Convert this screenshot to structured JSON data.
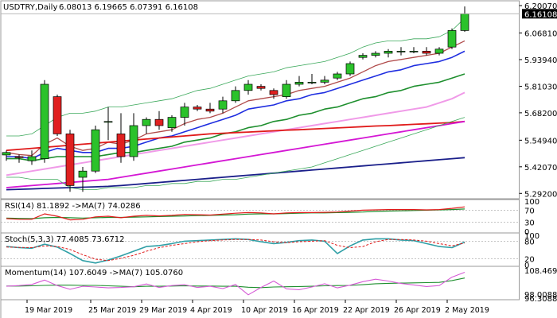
{
  "chart_data": {
    "type": "line",
    "symbol_title": "USDTRY,Daily",
    "ohlc_label": "6.08013 6.19665 6.07391 6.16108",
    "x_tick_labels": [
      "19 Mar 2019",
      "25 Mar 2019",
      "29 Mar 2019",
      "4 Apr 2019",
      "10 Apr 2019",
      "16 Apr 2019",
      "22 Apr 2019",
      "26 Apr 2019",
      "2 May 2019"
    ],
    "x_tick_positions": [
      2,
      7,
      11,
      15,
      19,
      23,
      27,
      31,
      35
    ],
    "main": {
      "y_ticks": [
        "6.20070",
        "6.06810",
        "5.93940",
        "5.81030",
        "5.68200",
        "5.54940",
        "5.42070",
        "5.29200"
      ],
      "y_tick_values": [
        6.2007,
        6.0681,
        5.9394,
        5.8103,
        5.682,
        5.5494,
        5.4207,
        5.292
      ],
      "ylim": [
        5.27,
        6.22
      ],
      "current_price_label": "6.16108",
      "current_price": 6.16108,
      "candles": [
        {
          "o": 5.478,
          "h": 5.5,
          "l": 5.45,
          "c": 5.49
        },
        {
          "o": 5.47,
          "h": 5.48,
          "l": 5.44,
          "c": 5.465
        },
        {
          "o": 5.45,
          "h": 5.5,
          "l": 5.43,
          "c": 5.47
        },
        {
          "o": 5.46,
          "h": 5.84,
          "l": 5.44,
          "c": 5.82
        },
        {
          "o": 5.76,
          "h": 5.77,
          "l": 5.57,
          "c": 5.58
        },
        {
          "o": 5.58,
          "h": 5.6,
          "l": 5.3,
          "c": 5.33
        },
        {
          "o": 5.37,
          "h": 5.42,
          "l": 5.3,
          "c": 5.4
        },
        {
          "o": 5.4,
          "h": 5.62,
          "l": 5.39,
          "c": 5.6
        },
        {
          "o": 5.64,
          "h": 5.71,
          "l": 5.55,
          "c": 5.64
        },
        {
          "o": 5.58,
          "h": 5.68,
          "l": 5.44,
          "c": 5.47
        },
        {
          "o": 5.47,
          "h": 5.68,
          "l": 5.45,
          "c": 5.62
        },
        {
          "o": 5.62,
          "h": 5.66,
          "l": 5.58,
          "c": 5.65
        },
        {
          "o": 5.65,
          "h": 5.69,
          "l": 5.6,
          "c": 5.62
        },
        {
          "o": 5.61,
          "h": 5.67,
          "l": 5.59,
          "c": 5.66
        },
        {
          "o": 5.66,
          "h": 5.73,
          "l": 5.62,
          "c": 5.71
        },
        {
          "o": 5.71,
          "h": 5.72,
          "l": 5.69,
          "c": 5.7
        },
        {
          "o": 5.7,
          "h": 5.73,
          "l": 5.68,
          "c": 5.69
        },
        {
          "o": 5.7,
          "h": 5.76,
          "l": 5.68,
          "c": 5.74
        },
        {
          "o": 5.74,
          "h": 5.81,
          "l": 5.73,
          "c": 5.79
        },
        {
          "o": 5.79,
          "h": 5.84,
          "l": 5.77,
          "c": 5.82
        },
        {
          "o": 5.81,
          "h": 5.82,
          "l": 5.79,
          "c": 5.8
        },
        {
          "o": 5.79,
          "h": 5.8,
          "l": 5.75,
          "c": 5.77
        },
        {
          "o": 5.76,
          "h": 5.84,
          "l": 5.75,
          "c": 5.82
        },
        {
          "o": 5.82,
          "h": 5.86,
          "l": 5.81,
          "c": 5.83
        },
        {
          "o": 5.83,
          "h": 5.87,
          "l": 5.82,
          "c": 5.83
        },
        {
          "o": 5.83,
          "h": 5.86,
          "l": 5.82,
          "c": 5.84
        },
        {
          "o": 5.85,
          "h": 5.88,
          "l": 5.84,
          "c": 5.87
        },
        {
          "o": 5.87,
          "h": 5.93,
          "l": 5.86,
          "c": 5.92
        },
        {
          "o": 5.95,
          "h": 5.97,
          "l": 5.94,
          "c": 5.96
        },
        {
          "o": 5.96,
          "h": 5.98,
          "l": 5.95,
          "c": 5.97
        },
        {
          "o": 5.97,
          "h": 5.99,
          "l": 5.95,
          "c": 5.98
        },
        {
          "o": 5.98,
          "h": 6.0,
          "l": 5.96,
          "c": 5.98
        },
        {
          "o": 5.98,
          "h": 6.0,
          "l": 5.97,
          "c": 5.98
        },
        {
          "o": 5.98,
          "h": 6.0,
          "l": 5.96,
          "c": 5.97
        },
        {
          "o": 5.97,
          "h": 6.0,
          "l": 5.96,
          "c": 5.99
        },
        {
          "o": 6.0,
          "h": 6.09,
          "l": 5.99,
          "c": 6.08
        },
        {
          "o": 6.08,
          "h": 6.19665,
          "l": 6.07391,
          "c": 6.16108
        }
      ],
      "lines": [
        {
          "color": "#b04a4a",
          "width": 1.3,
          "values": [
            5.49,
            5.48,
            5.475,
            5.53,
            5.56,
            5.52,
            5.5,
            5.51,
            5.54,
            5.53,
            5.55,
            5.58,
            5.59,
            5.6,
            5.63,
            5.65,
            5.66,
            5.68,
            5.71,
            5.74,
            5.75,
            5.76,
            5.77,
            5.79,
            5.8,
            5.81,
            5.83,
            5.85,
            5.88,
            5.91,
            5.93,
            5.94,
            5.95,
            5.96,
            5.97,
            6.0,
            6.03
          ]
        },
        {
          "color": "#1f2ee0",
          "width": 1.6,
          "values": [
            5.47,
            5.47,
            5.46,
            5.49,
            5.51,
            5.5,
            5.49,
            5.49,
            5.51,
            5.51,
            5.52,
            5.54,
            5.56,
            5.57,
            5.59,
            5.61,
            5.63,
            5.65,
            5.67,
            5.7,
            5.71,
            5.72,
            5.74,
            5.75,
            5.77,
            5.78,
            5.8,
            5.82,
            5.84,
            5.86,
            5.88,
            5.89,
            5.91,
            5.92,
            5.93,
            5.95,
            5.98
          ]
        },
        {
          "color": "#1e8f2e",
          "width": 1.6,
          "values": [
            5.46,
            5.46,
            5.45,
            5.46,
            5.47,
            5.47,
            5.47,
            5.47,
            5.48,
            5.49,
            5.49,
            5.5,
            5.51,
            5.52,
            5.54,
            5.55,
            5.56,
            5.58,
            5.59,
            5.61,
            5.62,
            5.64,
            5.65,
            5.67,
            5.68,
            5.7,
            5.71,
            5.73,
            5.75,
            5.76,
            5.78,
            5.79,
            5.81,
            5.82,
            5.83,
            5.85,
            5.87
          ]
        },
        {
          "color": "#f09ae8",
          "width": 2,
          "values": [
            5.38,
            5.39,
            5.4,
            5.41,
            5.42,
            5.43,
            5.44,
            5.45,
            5.46,
            5.47,
            5.48,
            5.49,
            5.5,
            5.51,
            5.52,
            5.53,
            5.54,
            5.55,
            5.56,
            5.57,
            5.58,
            5.59,
            5.6,
            5.61,
            5.62,
            5.63,
            5.64,
            5.65,
            5.66,
            5.67,
            5.68,
            5.69,
            5.7,
            5.71,
            5.73,
            5.75,
            5.78
          ]
        },
        {
          "color": "#e01a1a",
          "width": 1.8,
          "values": [
            5.5,
            5.505,
            5.51,
            5.515,
            5.52,
            5.525,
            5.53,
            5.535,
            5.54,
            5.545,
            5.55,
            5.555,
            5.56,
            5.565,
            5.57,
            5.575,
            5.58,
            5.583,
            5.586,
            5.589,
            5.592,
            5.595,
            5.598,
            5.6,
            5.603,
            5.606,
            5.609,
            5.612,
            5.615,
            5.618,
            5.62,
            5.623,
            5.626,
            5.629,
            5.632,
            5.635,
            5.64
          ]
        },
        {
          "color": "#d417d4",
          "width": 1.8,
          "values": [
            5.32,
            5.325,
            5.33,
            5.335,
            5.34,
            5.345,
            5.35,
            5.355,
            5.36,
            5.37,
            5.38,
            5.39,
            5.4,
            5.41,
            5.42,
            5.43,
            5.44,
            5.45,
            5.46,
            5.47,
            5.48,
            5.49,
            5.5,
            5.51,
            5.52,
            5.53,
            5.54,
            5.55,
            5.56,
            5.57,
            5.58,
            5.59,
            5.6,
            5.61,
            5.62,
            5.63,
            5.64
          ]
        },
        {
          "color": "#1a1f8a",
          "width": 1.8,
          "values": [
            5.31,
            5.312,
            5.314,
            5.316,
            5.318,
            5.32,
            5.322,
            5.324,
            5.326,
            5.33,
            5.335,
            5.34,
            5.345,
            5.35,
            5.355,
            5.36,
            5.365,
            5.37,
            5.375,
            5.38,
            5.385,
            5.39,
            5.395,
            5.4,
            5.405,
            5.41,
            5.415,
            5.42,
            5.425,
            5.43,
            5.435,
            5.44,
            5.445,
            5.45,
            5.455,
            5.46,
            5.465
          ]
        },
        {
          "color": "#3aa85a",
          "width": 0.8,
          "values": [
            5.57,
            5.57,
            5.58,
            5.62,
            5.66,
            5.68,
            5.68,
            5.69,
            5.71,
            5.71,
            5.72,
            5.73,
            5.74,
            5.75,
            5.77,
            5.79,
            5.8,
            5.82,
            5.84,
            5.86,
            5.87,
            5.88,
            5.9,
            5.91,
            5.92,
            5.93,
            5.95,
            5.97,
            6.0,
            6.02,
            6.03,
            6.03,
            6.04,
            6.04,
            6.05,
            6.08,
            6.14
          ]
        },
        {
          "color": "#3aa85a",
          "width": 0.8,
          "values": [
            5.37,
            5.37,
            5.36,
            5.36,
            5.36,
            5.32,
            5.31,
            5.31,
            5.32,
            5.32,
            5.32,
            5.33,
            5.33,
            5.34,
            5.34,
            5.35,
            5.35,
            5.36,
            5.36,
            5.37,
            5.38,
            5.39,
            5.4,
            5.41,
            5.42,
            5.44,
            5.46,
            5.48,
            5.5,
            5.52,
            5.54,
            5.56,
            5.58,
            5.6,
            5.62,
            5.64,
            5.66
          ]
        }
      ]
    },
    "rsi": {
      "label": "RSI(14) 81.1892  ->MA(7) 74.0286",
      "y_ticks": [
        "100",
        "70",
        "30",
        "0"
      ],
      "y_tick_values": [
        100,
        70,
        30,
        0
      ],
      "levels": [
        70,
        30
      ],
      "ylim": [
        0,
        100
      ],
      "rsi_values": [
        42,
        40,
        40,
        58,
        50,
        38,
        40,
        48,
        50,
        45,
        50,
        53,
        51,
        53,
        56,
        55,
        54,
        57,
        60,
        62,
        61,
        58,
        61,
        62,
        62,
        63,
        64,
        67,
        70,
        71,
        72,
        72,
        72,
        71,
        72,
        76,
        81
      ],
      "ma_values": [
        44,
        43,
        42,
        45,
        46,
        45,
        44,
        45,
        46,
        46,
        47,
        48,
        49,
        50,
        51,
        52,
        53,
        54,
        55,
        57,
        58,
        58,
        59,
        60,
        61,
        61,
        62,
        63,
        64,
        66,
        67,
        68,
        69,
        70,
        71,
        72,
        74
      ]
    },
    "stoch": {
      "label": "Stoch(5,3,3) 77.4085 73.6712",
      "y_ticks": [
        "100",
        "80",
        "20",
        "0"
      ],
      "y_tick_values": [
        100,
        80,
        20,
        0
      ],
      "levels": [
        80,
        20
      ],
      "ylim": [
        0,
        100
      ],
      "k_values": [
        62,
        58,
        56,
        70,
        60,
        38,
        14,
        6,
        16,
        30,
        46,
        62,
        65,
        72,
        80,
        82,
        84,
        86,
        88,
        86,
        78,
        72,
        76,
        82,
        84,
        80,
        38,
        64,
        84,
        88,
        88,
        84,
        82,
        72,
        62,
        58,
        77
      ],
      "d_values": [
        60,
        59,
        58,
        64,
        62,
        52,
        34,
        19,
        14,
        22,
        32,
        46,
        58,
        66,
        72,
        78,
        82,
        84,
        86,
        86,
        84,
        78,
        75,
        78,
        80,
        82,
        66,
        58,
        62,
        78,
        86,
        86,
        84,
        80,
        72,
        64,
        74
      ]
    },
    "momentum": {
      "label": "Momentum(14) 107.6049  ->MA(7) 105.0760",
      "y_ticks": [
        "108.4693",
        "98.0088",
        "96.3088"
      ],
      "y_tick_values": [
        108.4693,
        98.0088,
        96.3088
      ],
      "ylim": [
        96.0,
        109.5
      ],
      "mom_values": [
        101.5,
        101.8,
        102.3,
        104.2,
        101.8,
        100.2,
        101.5,
        101.2,
        100.8,
        101.0,
        101.3,
        102.5,
        101.0,
        101.8,
        102.2,
        101.0,
        101.5,
        100.5,
        102.3,
        97.8,
        101.0,
        103.8,
        100.4,
        100.0,
        101.2,
        102.6,
        100.8,
        102.0,
        103.5,
        104.6,
        103.8,
        102.7,
        102.1,
        101.4,
        101.8,
        105.5,
        107.6
      ],
      "ma_values": [
        101.6,
        101.6,
        101.7,
        101.9,
        102.0,
        102.0,
        101.9,
        101.9,
        101.7,
        101.5,
        101.3,
        101.5,
        101.5,
        101.6,
        101.7,
        101.6,
        101.6,
        101.5,
        101.5,
        101.1,
        100.9,
        101.2,
        101.3,
        101.4,
        101.5,
        101.7,
        101.8,
        101.9,
        102.2,
        102.6,
        102.8,
        102.9,
        103.0,
        103.1,
        103.2,
        104.0,
        105.1
      ]
    }
  }
}
